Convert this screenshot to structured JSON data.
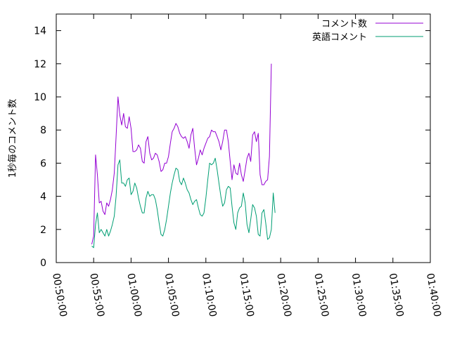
{
  "chart_data": {
    "type": "line",
    "title": "",
    "xlabel": "",
    "ylabel": "1秒毎のコメント数",
    "ylim": [
      0,
      15
    ],
    "yticks": [
      0,
      2,
      4,
      6,
      8,
      10,
      12,
      14
    ],
    "xlim": [
      "00:50:00",
      "01:40:00"
    ],
    "xticks": [
      "00:50:00",
      "00:55:00",
      "01:00:00",
      "01:05:00",
      "01:10:00",
      "01:15:00",
      "01:20:00",
      "01:25:00",
      "01:30:00",
      "01:35:00",
      "01:40:00"
    ],
    "grid": false,
    "legend_position": "top-right",
    "series": [
      {
        "name": "コメント数",
        "color": "#9400d3",
        "points": [
          [
            "00:54:45",
            1.1
          ],
          [
            "00:55:00",
            1.6
          ],
          [
            "00:55:15",
            6.5
          ],
          [
            "00:55:30",
            5.3
          ],
          [
            "00:55:45",
            3.6
          ],
          [
            "00:56:00",
            3.7
          ],
          [
            "00:56:15",
            3.1
          ],
          [
            "00:56:30",
            2.9
          ],
          [
            "00:56:45",
            3.6
          ],
          [
            "00:57:00",
            3.4
          ],
          [
            "00:57:15",
            3.8
          ],
          [
            "00:57:30",
            4.4
          ],
          [
            "00:57:45",
            5.4
          ],
          [
            "00:58:00",
            7.6
          ],
          [
            "00:58:15",
            10.0
          ],
          [
            "00:58:30",
            8.9
          ],
          [
            "00:58:45",
            8.3
          ],
          [
            "00:59:00",
            9.0
          ],
          [
            "00:59:15",
            8.2
          ],
          [
            "00:59:30",
            8.1
          ],
          [
            "00:59:45",
            8.8
          ],
          [
            "01:00:00",
            8.1
          ],
          [
            "01:00:15",
            6.7
          ],
          [
            "01:00:30",
            6.7
          ],
          [
            "01:00:45",
            6.8
          ],
          [
            "01:01:00",
            7.1
          ],
          [
            "01:01:15",
            6.9
          ],
          [
            "01:01:30",
            6.1
          ],
          [
            "01:01:45",
            6.0
          ],
          [
            "01:02:00",
            7.3
          ],
          [
            "01:02:15",
            7.6
          ],
          [
            "01:02:30",
            6.6
          ],
          [
            "01:02:45",
            6.2
          ],
          [
            "01:03:00",
            6.3
          ],
          [
            "01:03:15",
            6.6
          ],
          [
            "01:03:30",
            6.5
          ],
          [
            "01:03:45",
            6.1
          ],
          [
            "01:04:00",
            5.5
          ],
          [
            "01:04:15",
            5.6
          ],
          [
            "01:04:30",
            6.0
          ],
          [
            "01:04:45",
            6.0
          ],
          [
            "01:05:00",
            6.4
          ],
          [
            "01:05:15",
            7.2
          ],
          [
            "01:05:30",
            7.9
          ],
          [
            "01:05:45",
            8.1
          ],
          [
            "01:06:00",
            8.4
          ],
          [
            "01:06:15",
            8.2
          ],
          [
            "01:06:30",
            7.8
          ],
          [
            "01:06:45",
            7.6
          ],
          [
            "01:07:00",
            7.5
          ],
          [
            "01:07:15",
            7.6
          ],
          [
            "01:07:30",
            7.3
          ],
          [
            "01:07:45",
            6.9
          ],
          [
            "01:08:00",
            7.7
          ],
          [
            "01:08:15",
            8.1
          ],
          [
            "01:08:30",
            6.9
          ],
          [
            "01:08:45",
            5.9
          ],
          [
            "01:09:00",
            6.3
          ],
          [
            "01:09:15",
            6.8
          ],
          [
            "01:09:30",
            6.5
          ],
          [
            "01:09:45",
            6.9
          ],
          [
            "01:10:00",
            7.2
          ],
          [
            "01:10:15",
            7.5
          ],
          [
            "01:10:30",
            7.6
          ],
          [
            "01:10:45",
            8.0
          ],
          [
            "01:11:00",
            7.9
          ],
          [
            "01:11:15",
            7.9
          ],
          [
            "01:11:30",
            7.6
          ],
          [
            "01:11:45",
            7.3
          ],
          [
            "01:12:00",
            6.8
          ],
          [
            "01:12:15",
            7.3
          ],
          [
            "01:12:30",
            8.0
          ],
          [
            "01:12:45",
            8.0
          ],
          [
            "01:13:00",
            7.3
          ],
          [
            "01:13:15",
            6.1
          ],
          [
            "01:13:30",
            5.0
          ],
          [
            "01:13:45",
            5.9
          ],
          [
            "01:14:00",
            5.4
          ],
          [
            "01:14:15",
            5.3
          ],
          [
            "01:14:30",
            6.0
          ],
          [
            "01:14:45",
            5.3
          ],
          [
            "01:15:00",
            4.9
          ],
          [
            "01:15:15",
            5.6
          ],
          [
            "01:15:30",
            6.3
          ],
          [
            "01:15:45",
            6.6
          ],
          [
            "01:16:00",
            6.1
          ],
          [
            "01:16:15",
            7.7
          ],
          [
            "01:16:30",
            7.9
          ],
          [
            "01:16:45",
            7.3
          ],
          [
            "01:17:00",
            7.8
          ],
          [
            "01:17:15",
            5.3
          ],
          [
            "01:17:30",
            4.7
          ],
          [
            "01:17:45",
            4.7
          ],
          [
            "01:18:00",
            4.9
          ],
          [
            "01:18:15",
            5.0
          ],
          [
            "01:18:30",
            6.4
          ],
          [
            "01:18:45",
            12.0
          ]
        ]
      },
      {
        "name": "英語コメント",
        "color": "#009e73",
        "points": [
          [
            "00:54:45",
            1.0
          ],
          [
            "00:55:00",
            0.9
          ],
          [
            "00:55:15",
            2.3
          ],
          [
            "00:55:30",
            3.0
          ],
          [
            "00:55:45",
            1.8
          ],
          [
            "00:56:00",
            2.0
          ],
          [
            "00:56:15",
            1.8
          ],
          [
            "00:56:30",
            1.6
          ],
          [
            "00:56:45",
            2.0
          ],
          [
            "00:57:00",
            1.6
          ],
          [
            "00:57:15",
            1.9
          ],
          [
            "00:57:30",
            2.3
          ],
          [
            "00:57:45",
            2.8
          ],
          [
            "00:58:00",
            4.0
          ],
          [
            "00:58:15",
            5.9
          ],
          [
            "00:58:30",
            6.2
          ],
          [
            "00:58:45",
            4.8
          ],
          [
            "00:59:00",
            4.8
          ],
          [
            "00:59:15",
            4.6
          ],
          [
            "00:59:30",
            5.0
          ],
          [
            "00:59:45",
            5.1
          ],
          [
            "01:00:00",
            4.1
          ],
          [
            "01:00:15",
            4.3
          ],
          [
            "01:00:30",
            4.8
          ],
          [
            "01:00:45",
            4.5
          ],
          [
            "01:01:00",
            3.9
          ],
          [
            "01:01:15",
            3.4
          ],
          [
            "01:01:30",
            3.0
          ],
          [
            "01:01:45",
            3.0
          ],
          [
            "01:02:00",
            3.9
          ],
          [
            "01:02:15",
            4.3
          ],
          [
            "01:02:30",
            4.0
          ],
          [
            "01:02:45",
            4.1
          ],
          [
            "01:03:00",
            4.1
          ],
          [
            "01:03:15",
            3.8
          ],
          [
            "01:03:30",
            3.2
          ],
          [
            "01:03:45",
            2.4
          ],
          [
            "01:04:00",
            1.7
          ],
          [
            "01:04:15",
            1.6
          ],
          [
            "01:04:30",
            2.0
          ],
          [
            "01:04:45",
            2.6
          ],
          [
            "01:05:00",
            3.4
          ],
          [
            "01:05:15",
            4.2
          ],
          [
            "01:05:30",
            4.8
          ],
          [
            "01:05:45",
            5.3
          ],
          [
            "01:06:00",
            5.7
          ],
          [
            "01:06:15",
            5.6
          ],
          [
            "01:06:30",
            4.9
          ],
          [
            "01:06:45",
            4.7
          ],
          [
            "01:07:00",
            5.1
          ],
          [
            "01:07:15",
            4.8
          ],
          [
            "01:07:30",
            4.4
          ],
          [
            "01:07:45",
            4.2
          ],
          [
            "01:08:00",
            3.8
          ],
          [
            "01:08:15",
            3.5
          ],
          [
            "01:08:30",
            3.7
          ],
          [
            "01:08:45",
            3.8
          ],
          [
            "01:09:00",
            3.3
          ],
          [
            "01:09:15",
            2.9
          ],
          [
            "01:09:30",
            2.8
          ],
          [
            "01:09:45",
            3.0
          ],
          [
            "01:10:00",
            3.9
          ],
          [
            "01:10:15",
            5.0
          ],
          [
            "01:10:30",
            6.0
          ],
          [
            "01:10:45",
            5.9
          ],
          [
            "01:11:00",
            6.0
          ],
          [
            "01:11:15",
            6.3
          ],
          [
            "01:11:30",
            5.6
          ],
          [
            "01:11:45",
            4.8
          ],
          [
            "01:12:00",
            4.0
          ],
          [
            "01:12:15",
            3.4
          ],
          [
            "01:12:30",
            3.6
          ],
          [
            "01:12:45",
            4.4
          ],
          [
            "01:13:00",
            4.6
          ],
          [
            "01:13:15",
            4.5
          ],
          [
            "01:13:30",
            3.4
          ],
          [
            "01:13:45",
            2.4
          ],
          [
            "01:14:00",
            2.0
          ],
          [
            "01:14:15",
            3.0
          ],
          [
            "01:14:30",
            3.3
          ],
          [
            "01:14:45",
            3.4
          ],
          [
            "01:15:00",
            4.2
          ],
          [
            "01:15:15",
            3.6
          ],
          [
            "01:15:30",
            2.3
          ],
          [
            "01:15:45",
            1.8
          ],
          [
            "01:16:00",
            2.6
          ],
          [
            "01:16:15",
            3.5
          ],
          [
            "01:16:30",
            3.3
          ],
          [
            "01:16:45",
            2.8
          ],
          [
            "01:17:00",
            1.7
          ],
          [
            "01:17:15",
            1.6
          ],
          [
            "01:17:30",
            3.0
          ],
          [
            "01:17:45",
            3.2
          ],
          [
            "01:18:00",
            2.4
          ],
          [
            "01:18:15",
            1.4
          ],
          [
            "01:18:30",
            1.5
          ],
          [
            "01:18:45",
            2.0
          ],
          [
            "01:19:00",
            4.2
          ],
          [
            "01:19:15",
            3.0
          ]
        ]
      }
    ]
  }
}
